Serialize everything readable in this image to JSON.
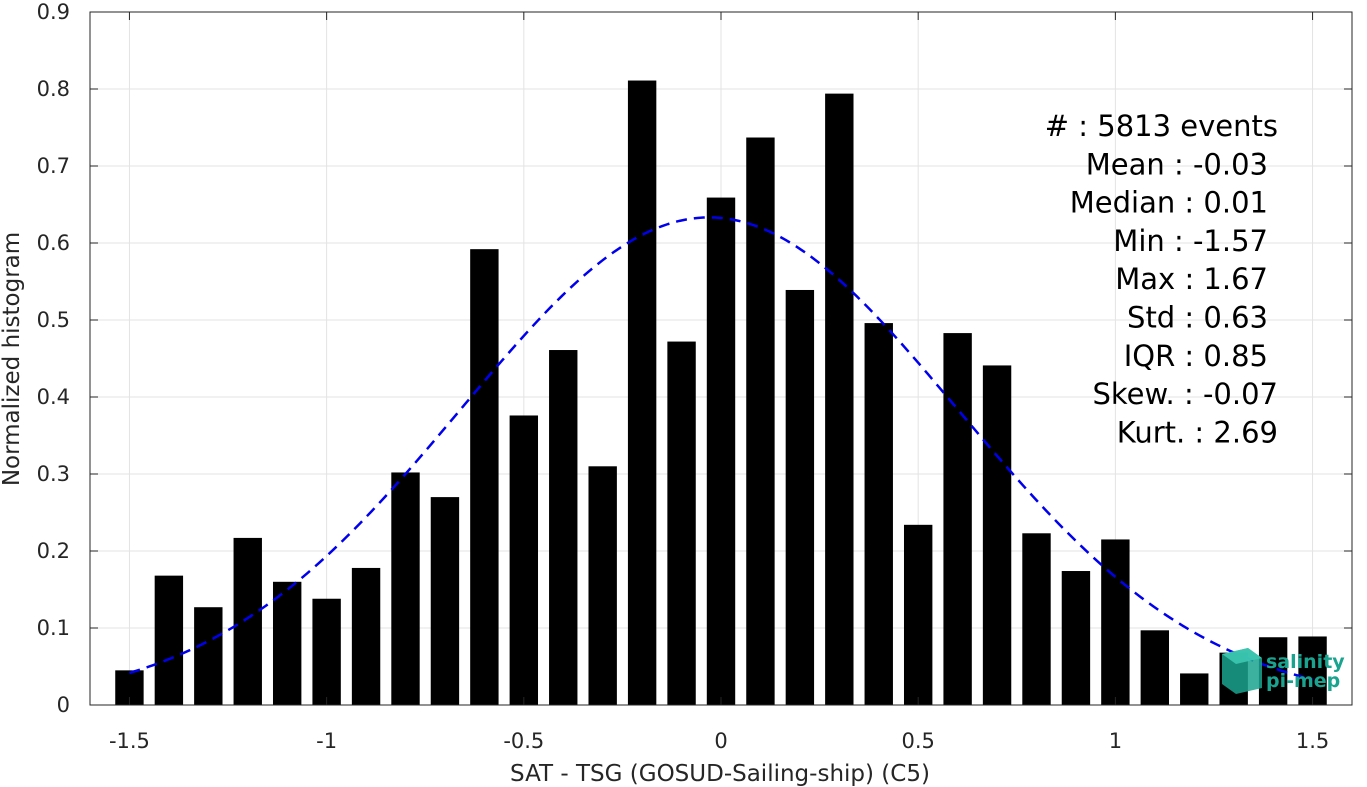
{
  "chart_data": {
    "type": "bar",
    "xlabel": "SAT - TSG (GOSUD-Sailing-ship) (C5)",
    "ylabel": "Normalized histogram",
    "xlim": [
      -1.6,
      1.6
    ],
    "ylim": [
      0,
      0.9
    ],
    "grid": true,
    "x_ticks": [
      -1.5,
      -1,
      -0.5,
      0,
      0.5,
      1,
      1.5
    ],
    "x_tick_labels": [
      "-1.5",
      "-1",
      "-0.5",
      "0",
      "0.5",
      "1",
      "1.5"
    ],
    "y_ticks": [
      0,
      0.1,
      0.2,
      0.3,
      0.4,
      0.5,
      0.6,
      0.7,
      0.8,
      0.9
    ],
    "y_tick_labels": [
      "0",
      "0.1",
      "0.2",
      "0.3",
      "0.4",
      "0.5",
      "0.6",
      "0.7",
      "0.8",
      "0.9"
    ],
    "bar_color": "#000000",
    "bar_width": 0.072,
    "x": [
      -1.5,
      -1.4,
      -1.3,
      -1.2,
      -1.1,
      -1.0,
      -0.9,
      -0.8,
      -0.7,
      -0.6,
      -0.5,
      -0.4,
      -0.3,
      -0.2,
      -0.1,
      0.0,
      0.1,
      0.2,
      0.3,
      0.4,
      0.5,
      0.6,
      0.7,
      0.8,
      0.9,
      1.0,
      1.1,
      1.2,
      1.3,
      1.4,
      1.5
    ],
    "values": [
      0.045,
      0.168,
      0.127,
      0.217,
      0.16,
      0.138,
      0.178,
      0.302,
      0.27,
      0.592,
      0.376,
      0.461,
      0.31,
      0.811,
      0.472,
      0.659,
      0.737,
      0.539,
      0.794,
      0.496,
      0.234,
      0.483,
      0.441,
      0.223,
      0.174,
      0.215,
      0.097,
      0.041,
      0.068,
      0.088,
      0.089
    ],
    "fit": {
      "type": "normal",
      "mean": -0.03,
      "std": 0.63,
      "x_range": [
        -1.5,
        1.5
      ],
      "color": "#0000ee",
      "style": "dashed"
    },
    "stats": [
      {
        "label": "#  : 5813 events"
      },
      {
        "label": "Mean : -0.03"
      },
      {
        "label": "Median : 0.01"
      },
      {
        "label": "Min : -1.57"
      },
      {
        "label": "Max : 1.67"
      },
      {
        "label": "Std : 0.63"
      },
      {
        "label": "IQR : 0.85"
      },
      {
        "label": "Skew. : -0.07"
      },
      {
        "label": "Kurt. : 2.69"
      }
    ]
  },
  "logo": {
    "line1": "salinity",
    "line2": "pi-mep",
    "color": "#1aa38f"
  }
}
